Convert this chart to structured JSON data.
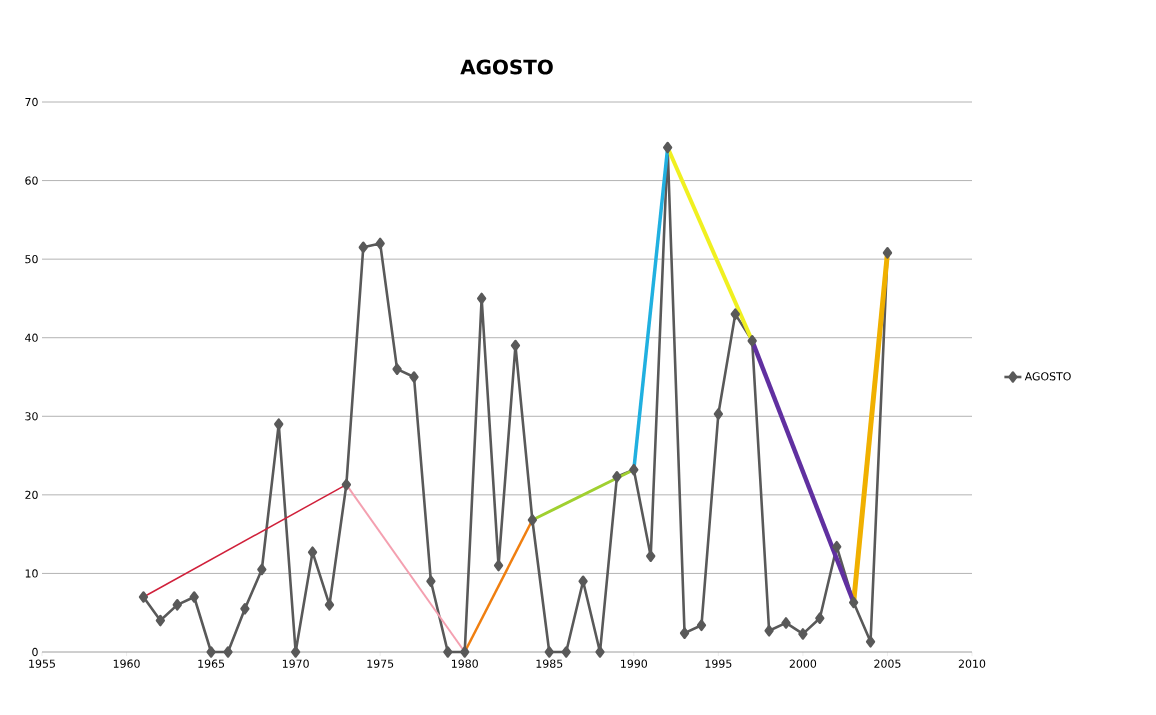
{
  "chart_data": {
    "type": "line",
    "title": "AGOSTO",
    "xlim": [
      1955,
      2010
    ],
    "xticks": [
      1955,
      1960,
      1965,
      1970,
      1975,
      1980,
      1985,
      1990,
      1995,
      2000,
      2005,
      2010
    ],
    "ylim": [
      0,
      70
    ],
    "yticks": [
      0,
      10,
      20,
      30,
      40,
      50,
      60,
      70
    ],
    "grid": "y",
    "legend": "right",
    "series": [
      {
        "name": "AGOSTO",
        "color": "#595959",
        "marker": "diamond",
        "line_style": "solid",
        "x": [
          1961,
          1962,
          1963,
          1964,
          1965,
          1966,
          1967,
          1968,
          1969,
          1970,
          1971,
          1972,
          1973,
          1974,
          1975,
          1976,
          1977,
          1978,
          1979,
          1980,
          1981,
          1982,
          1983,
          1984,
          1985,
          1986,
          1987,
          1988,
          1989,
          1990,
          1991,
          1992,
          1993,
          1994,
          1995,
          1996,
          1997,
          1998,
          1999,
          2000,
          2001,
          2002,
          2003,
          2004,
          2005
        ],
        "values": [
          7,
          4,
          6,
          7,
          0,
          0,
          5.5,
          10.5,
          29,
          0,
          12.7,
          6,
          21.3,
          51.5,
          52,
          36,
          35,
          9,
          0,
          0,
          45,
          11,
          39,
          16.8,
          0,
          0,
          9,
          0,
          22.3,
          23.2,
          12.2,
          64.2,
          2.4,
          3.4,
          30.3,
          43,
          39.6,
          2.7,
          3.7,
          2.3,
          4.3,
          13.4,
          6.3,
          1.3,
          50.8
        ]
      },
      {
        "type": "line",
        "color": "#d0203a",
        "x": [
          1961,
          1973
        ],
        "values": [
          7,
          21.3
        ]
      },
      {
        "type": "line",
        "color": "#f4a0b0",
        "x": [
          1973,
          1980
        ],
        "values": [
          21.3,
          0
        ]
      },
      {
        "type": "line",
        "color": "#f07f10",
        "x": [
          1980,
          1984
        ],
        "values": [
          0,
          16.8
        ]
      },
      {
        "type": "line",
        "color": "#a0d030",
        "x": [
          1984,
          1990
        ],
        "values": [
          16.8,
          23.2
        ]
      },
      {
        "type": "line",
        "color": "#20b0e0",
        "x": [
          1990,
          1992
        ],
        "values": [
          23.2,
          64.2
        ]
      },
      {
        "type": "line",
        "color": "#f0f020",
        "x": [
          1992,
          1997
        ],
        "values": [
          64.2,
          39.6
        ]
      },
      {
        "type": "line",
        "color": "#6030a0",
        "x": [
          1997,
          2003
        ],
        "values": [
          39.6,
          6.3
        ]
      },
      {
        "type": "line",
        "color": "#f0b000",
        "x": [
          2003,
          2005
        ],
        "values": [
          6.3,
          50.8
        ]
      }
    ]
  }
}
